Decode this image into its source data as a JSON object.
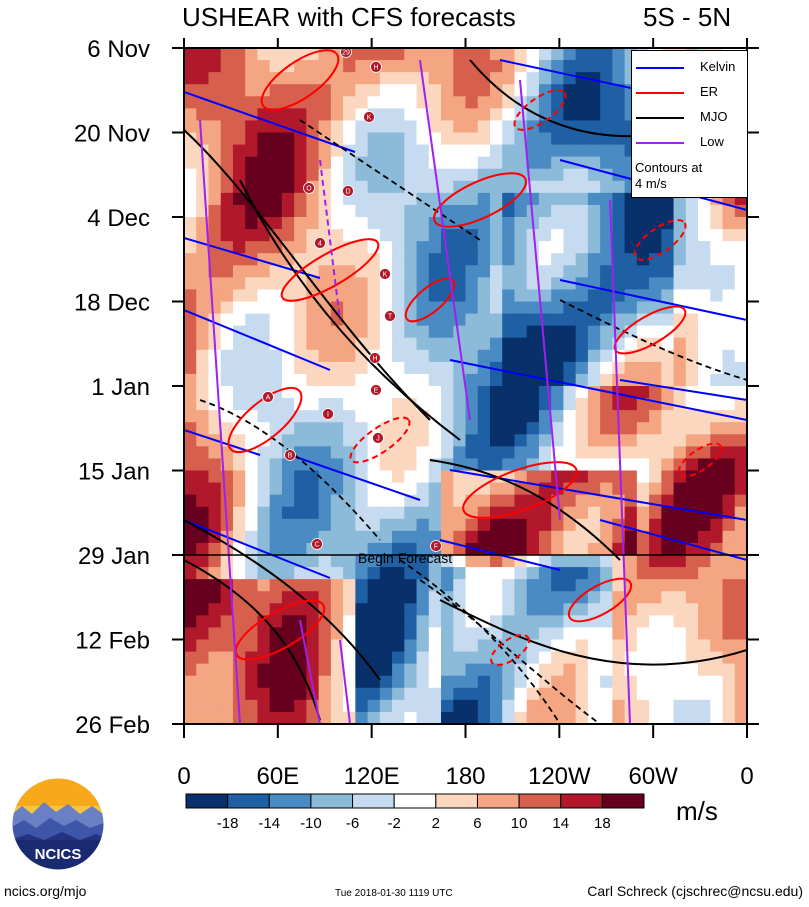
{
  "title": "USHEAR with CFS forecasts",
  "region": "5S - 5N",
  "chart_data": {
    "type": "heatmap",
    "variable": "USHEAR",
    "units": "m/s",
    "y_axis": {
      "tick_labels": [
        "6 Nov",
        "20 Nov",
        "4 Dec",
        "18 Dec",
        "1 Jan",
        "15 Jan",
        "29 Jan",
        "12 Feb",
        "26 Feb"
      ],
      "range": [
        "6 Nov",
        "26 Feb"
      ]
    },
    "x_axis": {
      "tick_labels": [
        "0",
        "60E",
        "120E",
        "180",
        "120W",
        "60W",
        "0"
      ],
      "range": [
        "0",
        "0"
      ]
    },
    "color_levels": [
      -18,
      -14,
      -10,
      -6,
      -2,
      2,
      6,
      10,
      14,
      18
    ],
    "color_labels": [
      "-18",
      "-14",
      "-10",
      "-6",
      "-2",
      "2",
      "6",
      "10",
      "14",
      "18"
    ],
    "colors": [
      "#08306b",
      "#1f5fa3",
      "#4a8bc4",
      "#8cbad9",
      "#c6dbef",
      "#ffffff",
      "#fbd7c0",
      "#f4a582",
      "#d6604d",
      "#b2182b",
      "#67001f"
    ],
    "forecast_marker": {
      "date": "29 Jan",
      "label": "Begin Forecast"
    },
    "legend": {
      "position": "top-right",
      "entries": [
        {
          "name": "Kelvin",
          "color": "#0000ff"
        },
        {
          "name": "ER",
          "color": "#ff0000"
        },
        {
          "name": "MJO",
          "color": "#000000"
        },
        {
          "name": "Low",
          "color": "#a020f0"
        }
      ],
      "note_line1": "Contours at",
      "note_line2": "4 m/s"
    },
    "storm_markers": [
      "29",
      "H",
      "K",
      "O",
      "D",
      "4",
      "K",
      "T",
      "H",
      "E",
      "I",
      "J",
      "A",
      "B",
      "C",
      "F"
    ]
  },
  "footer": {
    "left": "ncics.org/mjo",
    "middle": "Tue 2018-01-30 1119 UTC",
    "right": "Carl Schreck (cjschrec@ncsu.edu)"
  },
  "logo_text": "NCICS"
}
